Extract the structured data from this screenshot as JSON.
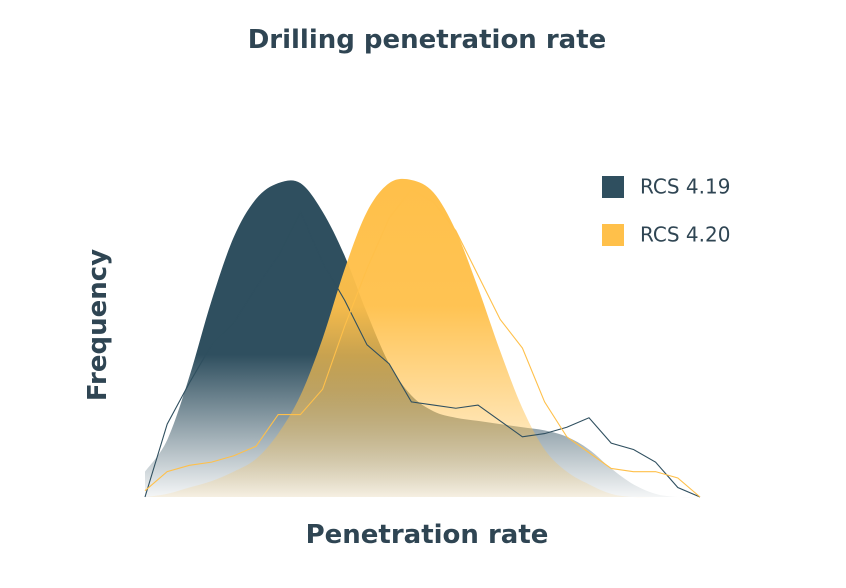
{
  "chart_data": {
    "type": "area",
    "title": "Drilling penetration rate",
    "x_label": "Penetration rate",
    "y_label": "Frequency",
    "xlim": [
      0,
      100
    ],
    "ylim": [
      0,
      100
    ],
    "x": [
      0,
      4,
      8,
      12,
      16,
      20,
      24,
      28,
      32,
      36,
      40,
      44,
      48,
      52,
      56,
      60,
      64,
      68,
      72,
      76,
      80,
      84,
      88,
      92,
      96,
      100
    ],
    "series": [
      {
        "name": "RCS 4.19",
        "color": "#2f4f5f",
        "values": [
          8,
          18,
          38,
          62,
          82,
          94,
          99,
          99,
          90,
          76,
          58,
          42,
          32,
          27,
          25,
          24,
          23,
          22,
          21,
          19,
          15,
          9,
          4,
          1,
          0,
          0
        ],
        "raw_values": [
          0,
          23,
          36,
          48,
          55,
          66,
          76,
          90,
          74,
          62,
          48,
          42,
          30,
          29,
          28,
          29,
          24,
          19,
          20,
          22,
          25,
          17,
          15,
          11,
          3,
          0
        ]
      },
      {
        "name": "RCS 4.20",
        "color": "#ffc04a",
        "values": [
          0,
          1,
          3,
          5,
          8,
          12,
          20,
          32,
          50,
          72,
          90,
          99,
          100,
          96,
          84,
          66,
          46,
          28,
          15,
          8,
          4,
          1,
          0,
          0,
          0,
          0
        ],
        "raw_values": [
          2,
          8,
          10,
          11,
          13,
          16,
          26,
          26,
          34,
          54,
          72,
          88,
          97,
          93,
          84,
          70,
          56,
          47,
          30,
          19,
          14,
          9,
          8,
          8,
          6,
          0
        ]
      }
    ]
  }
}
